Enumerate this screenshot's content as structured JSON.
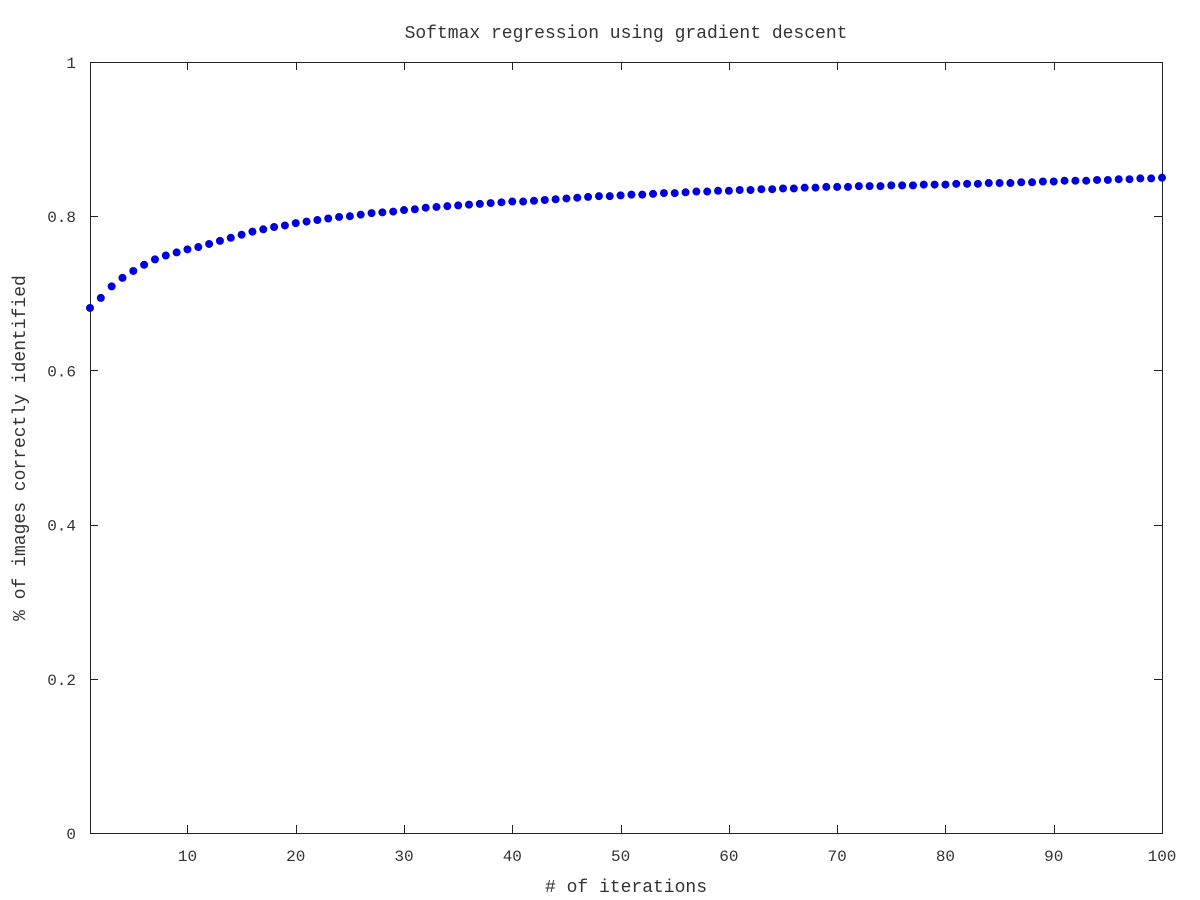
{
  "chart_data": {
    "type": "scatter",
    "title": "Softmax regression using gradient descent",
    "xlabel": "# of iterations",
    "ylabel": "% of images correctly identified",
    "xlim": [
      1,
      100
    ],
    "ylim": [
      0,
      1
    ],
    "x_ticks": [
      10,
      20,
      30,
      40,
      50,
      60,
      70,
      80,
      90,
      100
    ],
    "x_tick_labels": [
      "10",
      "20",
      "30",
      "40",
      "50",
      "60",
      "70",
      "80",
      "90",
      "100"
    ],
    "y_ticks": [
      0,
      0.2,
      0.4,
      0.6,
      0.8,
      1
    ],
    "y_tick_labels": [
      "0",
      "0.2",
      "0.4",
      "0.6",
      "0.8",
      "1"
    ],
    "grid": false,
    "legend": "none",
    "marker": "filled-circle",
    "colors": {
      "series": "#0000dd",
      "axes": "#222222",
      "text": "#333333",
      "background": "#ffffff"
    },
    "series": [
      {
        "x": [
          1,
          2,
          3,
          4,
          5,
          6,
          7,
          8,
          9,
          10,
          11,
          12,
          13,
          14,
          15,
          16,
          17,
          18,
          19,
          20,
          21,
          22,
          23,
          24,
          25,
          26,
          27,
          28,
          29,
          30,
          31,
          32,
          33,
          34,
          35,
          36,
          37,
          38,
          39,
          40,
          41,
          42,
          43,
          44,
          45,
          46,
          47,
          48,
          49,
          50,
          51,
          52,
          53,
          54,
          55,
          56,
          57,
          58,
          59,
          60,
          61,
          62,
          63,
          64,
          65,
          66,
          67,
          68,
          69,
          70,
          71,
          72,
          73,
          74,
          75,
          76,
          77,
          78,
          79,
          80,
          81,
          82,
          83,
          84,
          85,
          86,
          87,
          88,
          89,
          90,
          91,
          92,
          93,
          94,
          95,
          96,
          97,
          98,
          99,
          100
        ],
        "values": [
          0.681,
          0.694,
          0.709,
          0.72,
          0.729,
          0.737,
          0.744,
          0.749,
          0.753,
          0.757,
          0.76,
          0.764,
          0.768,
          0.772,
          0.776,
          0.78,
          0.783,
          0.786,
          0.788,
          0.791,
          0.793,
          0.795,
          0.797,
          0.799,
          0.8,
          0.802,
          0.804,
          0.805,
          0.806,
          0.808,
          0.809,
          0.811,
          0.812,
          0.813,
          0.814,
          0.815,
          0.816,
          0.817,
          0.818,
          0.819,
          0.819,
          0.82,
          0.821,
          0.822,
          0.823,
          0.824,
          0.825,
          0.826,
          0.826,
          0.827,
          0.828,
          0.828,
          0.829,
          0.83,
          0.83,
          0.831,
          0.832,
          0.832,
          0.833,
          0.833,
          0.834,
          0.834,
          0.835,
          0.835,
          0.836,
          0.836,
          0.837,
          0.837,
          0.838,
          0.838,
          0.838,
          0.839,
          0.839,
          0.839,
          0.84,
          0.84,
          0.84,
          0.841,
          0.841,
          0.841,
          0.842,
          0.842,
          0.842,
          0.843,
          0.843,
          0.843,
          0.844,
          0.844,
          0.845,
          0.845,
          0.846,
          0.846,
          0.846,
          0.847,
          0.847,
          0.848,
          0.848,
          0.849,
          0.849,
          0.85
        ]
      }
    ]
  }
}
